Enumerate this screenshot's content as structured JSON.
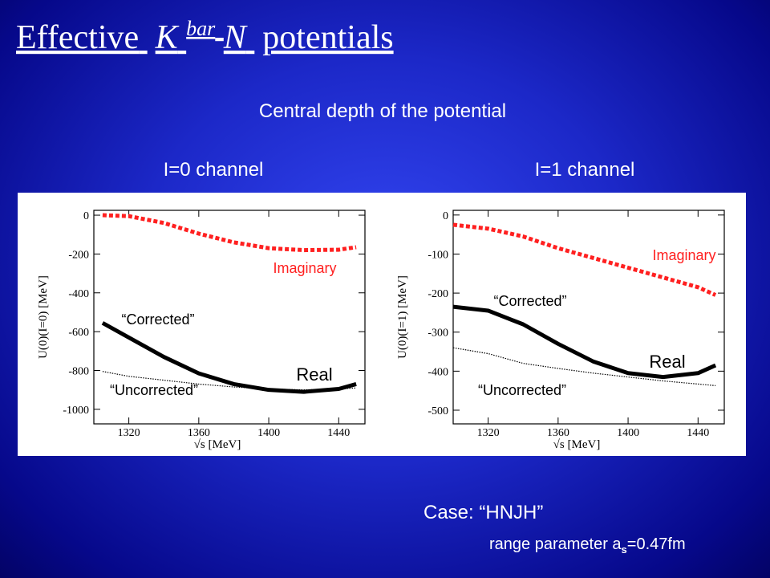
{
  "slide": {
    "title": [
      "Effective",
      "K",
      "bar",
      "N",
      "potentials"
    ],
    "subtitle": "Central depth of the potential",
    "case": "Case: “HNJH”",
    "range_note": [
      "range parameter a",
      "s",
      "=0.47fm"
    ]
  },
  "chart_data": [
    {
      "type": "line",
      "title": "I=0 channel",
      "y_label": "U(0)(I=0) [MeV]",
      "x_label": "√s [MeV]",
      "x": [
        1305,
        1320,
        1340,
        1360,
        1380,
        1400,
        1420,
        1440,
        1450
      ],
      "series": [
        {
          "color": "#000000",
          "style": "solid",
          "values": [
            -555,
            -630,
            -730,
            -815,
            -870,
            -900,
            -910,
            -895,
            -870
          ]
        },
        {
          "color": "#000000",
          "style": "dotted",
          "values": [
            -805,
            -830,
            -850,
            -870,
            -885,
            -895,
            -900,
            -895,
            -890
          ]
        },
        {
          "color": "#ff2020",
          "style": "dashed",
          "values": [
            0,
            -5,
            -40,
            -95,
            -140,
            -170,
            -180,
            -178,
            -165
          ]
        }
      ],
      "annotations": [
        "Imaginary",
        "“Corrected”",
        "“Uncorrected”",
        "Real"
      ],
      "xlim": [
        1300,
        1455
      ],
      "ylim": [
        -1075,
        25
      ],
      "xticks": [
        1320,
        1360,
        1400,
        1440
      ],
      "yticks": [
        0,
        -200,
        -400,
        -600,
        -800,
        -1000
      ],
      "grid": false
    },
    {
      "type": "line",
      "title": "I=1 channel",
      "y_label": "U(0)(I=1) [MeV]",
      "x_label": "√s [MeV]",
      "x": [
        1300,
        1320,
        1340,
        1360,
        1380,
        1400,
        1420,
        1440,
        1450
      ],
      "series": [
        {
          "color": "#000000",
          "style": "solid",
          "values": [
            -235,
            -245,
            -280,
            -330,
            -375,
            -405,
            -415,
            -405,
            -385
          ]
        },
        {
          "color": "#000000",
          "style": "dotted",
          "values": [
            -340,
            -355,
            -380,
            -393,
            -405,
            -415,
            -425,
            -433,
            -437
          ]
        },
        {
          "color": "#ff2020",
          "style": "dashed",
          "values": [
            -25,
            -35,
            -55,
            -85,
            -110,
            -135,
            -160,
            -185,
            -205
          ]
        }
      ],
      "annotations": [
        "Imaginary",
        "“Corrected”",
        "“Uncorrected”",
        "Real"
      ],
      "xlim": [
        1300,
        1455
      ],
      "ylim": [
        -535,
        12
      ],
      "xticks": [
        1320,
        1360,
        1400,
        1440
      ],
      "yticks": [
        0,
        -100,
        -200,
        -300,
        -400,
        -500
      ],
      "grid": false
    }
  ]
}
